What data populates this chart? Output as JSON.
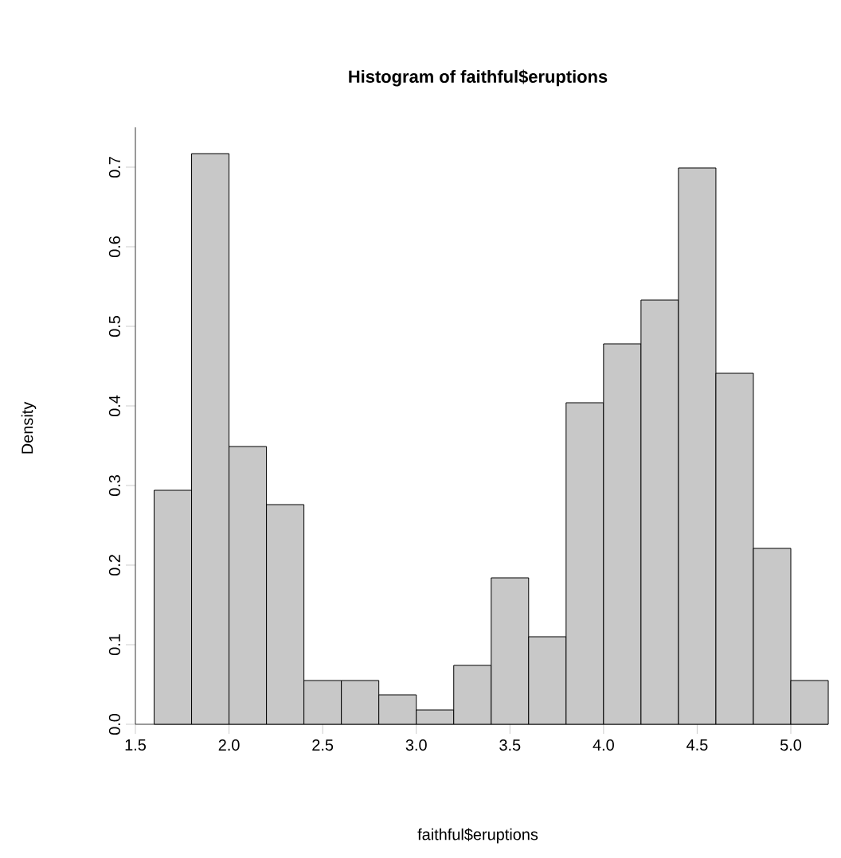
{
  "chart_data": {
    "type": "histogram",
    "title": "Histogram of faithful$eruptions",
    "xlabel": "faithful$eruptions",
    "ylabel": "Density",
    "bins": [
      1.6,
      1.8,
      2.0,
      2.2,
      2.4,
      2.6,
      2.8,
      3.0,
      3.2,
      3.4,
      3.6,
      3.8,
      4.0,
      4.2,
      4.4,
      4.6,
      4.8,
      5.0,
      5.2
    ],
    "values": [
      0.294,
      0.717,
      0.349,
      0.276,
      0.055,
      0.055,
      0.037,
      0.018,
      0.074,
      0.184,
      0.11,
      0.404,
      0.478,
      0.533,
      0.699,
      0.441,
      0.221,
      0.055
    ],
    "color": "#c8c8c8",
    "xlim": [
      1.5,
      5.2
    ],
    "ylim": [
      0,
      0.75
    ],
    "xticks": [
      1.5,
      {
        "value": 2,
        "label": "2.0"
      },
      2.5,
      {
        "value": 3,
        "label": "3.0"
      },
      3.5,
      {
        "value": 4,
        "label": "4.0"
      },
      4.5,
      {
        "value": 5,
        "label": "5.0"
      }
    ],
    "yticks": [
      {
        "value": 0,
        "label": "0.0"
      },
      0.1,
      0.2,
      0.3,
      0.4,
      0.5,
      0.6,
      0.7
    ]
  }
}
